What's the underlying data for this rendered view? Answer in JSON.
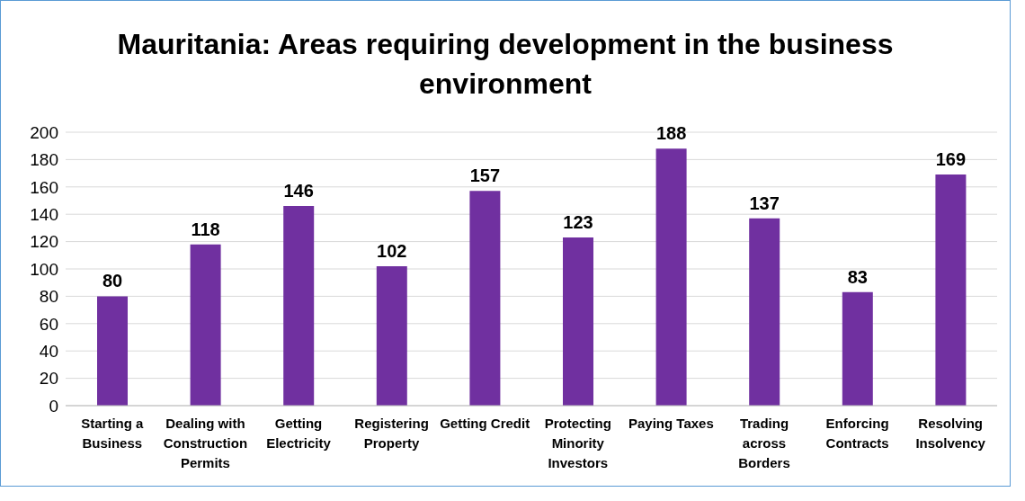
{
  "chart_data": {
    "type": "bar",
    "title": "Mauritania: Areas requiring development in the business environment",
    "categories": [
      "Starting a Business",
      "Dealing with Construction Permits",
      "Getting Electricity",
      "Registering Property",
      "Getting Credit",
      "Protecting Minority Investors",
      "Paying Taxes",
      "Trading across Borders",
      "Enforcing Contracts",
      "Resolving Insolvency"
    ],
    "values": [
      80,
      118,
      146,
      102,
      157,
      123,
      188,
      137,
      83,
      169
    ],
    "color": "#7030a0",
    "ylim": [
      0,
      200
    ],
    "yticks": [
      0,
      20,
      40,
      60,
      80,
      100,
      120,
      140,
      160,
      180,
      200
    ],
    "grid": "y",
    "data_labels": true
  }
}
